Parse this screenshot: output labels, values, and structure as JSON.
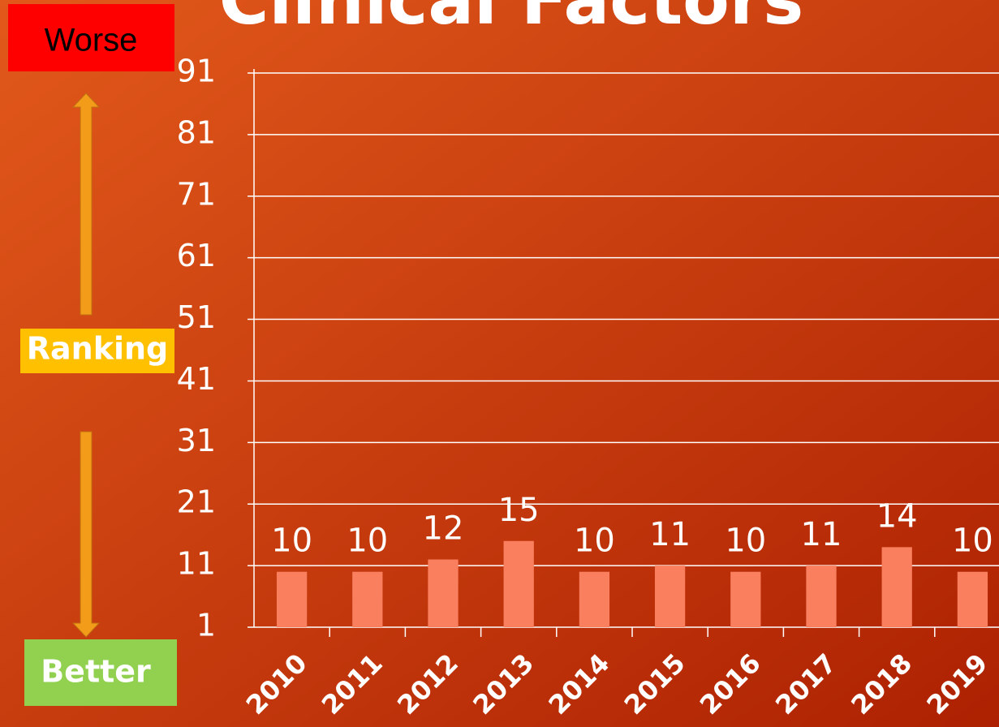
{
  "chart_data": {
    "type": "bar",
    "title": "Clinical Factors",
    "categories": [
      "2010",
      "2011",
      "2012",
      "2013",
      "2014",
      "2015",
      "2016",
      "2017",
      "2018",
      "2019"
    ],
    "values": [
      10,
      10,
      12,
      15,
      10,
      11,
      10,
      11,
      14,
      10
    ],
    "color": "#f97f5f",
    "ylim": [
      1,
      91
    ],
    "yticks": [
      1,
      11,
      21,
      31,
      41,
      51,
      61,
      71,
      81,
      91
    ],
    "grid": true,
    "annotations": [
      "Worse",
      "Ranking",
      "Better"
    ]
  }
}
